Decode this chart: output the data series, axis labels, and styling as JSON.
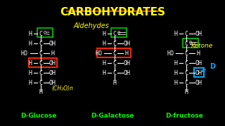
{
  "background_color": "#000000",
  "title": "CARBOHYDRATES",
  "title_color": "#FFFF00",
  "title_underline_color": "#FF4400",
  "title_fontsize": 11,
  "subtitle_aldehydes": "Aldehydes",
  "subtitle_aldehydes_color": "#FFFF00",
  "subtitle_ketone": "Ketone",
  "subtitle_ketone_color": "#FFFF00",
  "label_glucose": "D-Glucose",
  "label_galactose": "D-Galactose",
  "label_fructose": "D-fructose",
  "label_color": "#00FF00",
  "formula": "(CH₂O)n",
  "formula_color": "#FFFF00",
  "white_color": "#FFFFFF",
  "red_color": "#FF2200",
  "green_box_color": "#00CC00",
  "blue_color": "#00AAFF",
  "yellow_color": "#FFFF00"
}
